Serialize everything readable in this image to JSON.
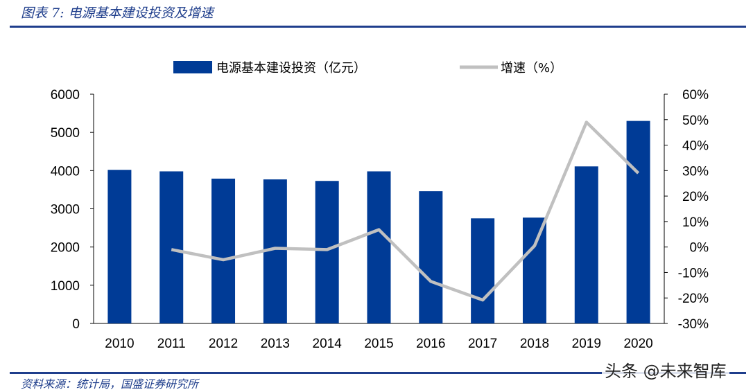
{
  "title": "图表 7:  电源基本建设投资及增速",
  "source": "资料来源：统计局，国盛证券研究所",
  "watermark": "头条 @未来智库",
  "chart_data": {
    "type": "bar+line",
    "categories": [
      "2010",
      "2011",
      "2012",
      "2013",
      "2014",
      "2015",
      "2016",
      "2017",
      "2018",
      "2019",
      "2020"
    ],
    "series": [
      {
        "name": "电源基本建设投资（亿元）",
        "type": "bar",
        "axis": "left",
        "color": "#003b96",
        "values": [
          4020,
          3980,
          3790,
          3770,
          3730,
          3980,
          3460,
          2750,
          2770,
          4110,
          5300
        ]
      },
      {
        "name": "增速（%）",
        "type": "line",
        "axis": "right",
        "color": "#c0c0c0",
        "values": [
          null,
          -1.0,
          -5.0,
          -0.5,
          -1.0,
          6.8,
          -13.5,
          -20.8,
          0.5,
          49.0,
          29.0
        ]
      }
    ],
    "left_axis": {
      "ylim": [
        0,
        6000
      ],
      "ticks": [
        "0",
        "1000",
        "2000",
        "3000",
        "4000",
        "5000",
        "6000"
      ]
    },
    "right_axis": {
      "ylim": [
        -30,
        60
      ],
      "ticks": [
        "-30%",
        "-20%",
        "-10%",
        "0%",
        "10%",
        "20%",
        "30%",
        "40%",
        "50%",
        "60%"
      ]
    },
    "legend_position": "top",
    "grid": false
  }
}
